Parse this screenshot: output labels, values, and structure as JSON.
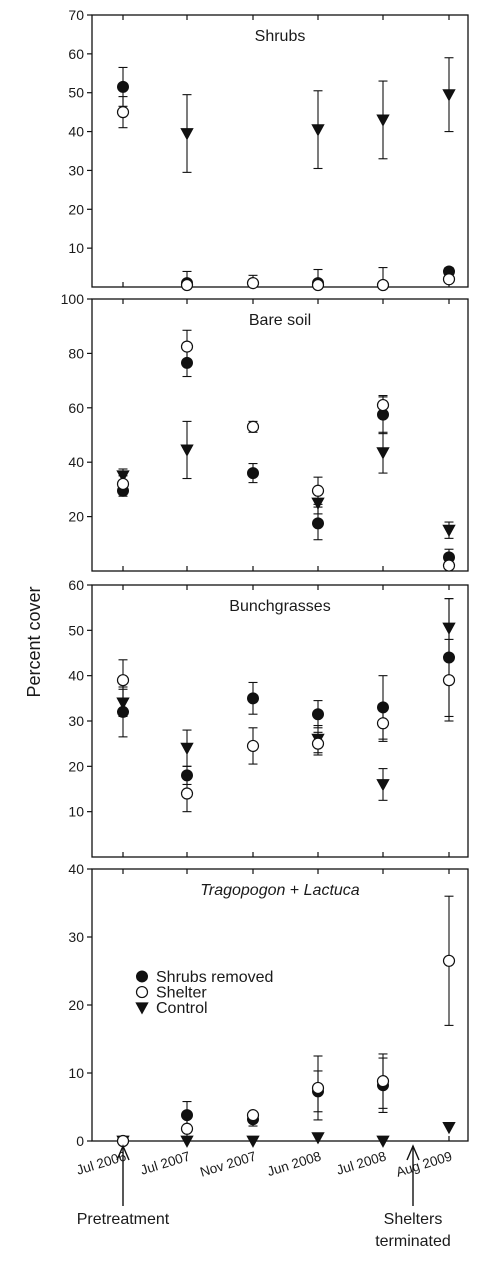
{
  "chart_data": {
    "type": "scatter",
    "ylabel": "Percent cover",
    "categories": [
      "Jul 2006",
      "Jul 2007",
      "Nov 2007",
      "Jun 2008",
      "Jul 2008",
      "Aug 2009"
    ],
    "legend": {
      "placement": "inside-bottom-panel-left",
      "entries": [
        {
          "name": "Shrubs removed",
          "marker": "filled-circle"
        },
        {
          "name": "Shelter",
          "marker": "open-circle"
        },
        {
          "name": "Control",
          "marker": "filled-triangle-down"
        }
      ]
    },
    "annotations": [
      {
        "lines": [
          "Pretreatment"
        ],
        "category": "Jul 2006"
      },
      {
        "lines": [
          "Shelters",
          "terminated"
        ],
        "category": "Aug 2009"
      }
    ],
    "panels": [
      {
        "title": "Shrubs",
        "title_style": "normal",
        "ylim": [
          0,
          70
        ],
        "yticks": [
          10,
          20,
          30,
          40,
          50,
          60,
          70
        ],
        "series": [
          {
            "name": "Shrubs removed",
            "values": [
              51.5,
              1,
              null,
              1,
              0.5,
              4
            ],
            "errors": [
              5,
              3,
              null,
              3.5,
              null,
              1
            ]
          },
          {
            "name": "Shelter",
            "values": [
              45,
              0.5,
              1,
              0.5,
              0.5,
              2
            ],
            "errors": [
              4,
              null,
              2,
              null,
              4.5,
              null
            ]
          },
          {
            "name": "Control",
            "values": [
              null,
              39.5,
              null,
              40.5,
              43,
              49.5
            ],
            "errors": [
              null,
              10,
              null,
              10,
              10,
              9.5
            ]
          }
        ]
      },
      {
        "title": "Bare soil",
        "title_style": "normal",
        "ylim": [
          0,
          100
        ],
        "yticks": [
          20,
          40,
          60,
          80,
          100
        ],
        "series": [
          {
            "name": "Shrubs removed",
            "values": [
              29.5,
              76.5,
              36,
              17.5,
              57.5,
              5
            ],
            "errors": [
              2,
              5,
              3.5,
              6,
              7,
              3
            ]
          },
          {
            "name": "Shelter",
            "values": [
              32,
              82.5,
              53,
              29.5,
              61,
              2
            ],
            "errors": [
              3,
              6,
              2,
              5,
              3,
              null
            ]
          },
          {
            "name": "Control",
            "values": [
              35,
              44.5,
              null,
              25,
              43.5,
              15
            ],
            "errors": [
              2.5,
              10.5,
              null,
              4,
              7.5,
              3
            ]
          }
        ]
      },
      {
        "title": "Bunchgrasses",
        "title_style": "normal",
        "ylim": [
          0,
          60
        ],
        "yticks": [
          10,
          20,
          30,
          40,
          50,
          60
        ],
        "series": [
          {
            "name": "Shrubs removed",
            "values": [
              32,
              18,
              35,
              31.5,
              33,
              44
            ],
            "errors": [
              5.5,
              2,
              3.5,
              3,
              7,
              13
            ]
          },
          {
            "name": "Shelter",
            "values": [
              39,
              14,
              24.5,
              25,
              29.5,
              39
            ],
            "errors": [
              4.5,
              4,
              4,
              2.5,
              4,
              9
            ]
          },
          {
            "name": "Control",
            "values": [
              34,
              24,
              null,
              26,
              16,
              50.5
            ],
            "errors": [
              3,
              4,
              null,
              3,
              3.5,
              6.5
            ]
          }
        ]
      },
      {
        "title_parts": [
          {
            "text": "Tragopogon",
            "style": "italic"
          },
          {
            "text": " + ",
            "style": "normal"
          },
          {
            "text": "Lactuca",
            "style": "italic"
          }
        ],
        "ylim": [
          0,
          40
        ],
        "yticks": [
          0,
          10,
          20,
          30,
          40
        ],
        "series": [
          {
            "name": "Shrubs removed",
            "values": [
              0,
              3.8,
              3.2,
              7.3,
              8.2,
              null
            ],
            "errors": [
              null,
              2,
              1,
              3,
              4,
              null
            ]
          },
          {
            "name": "Shelter",
            "values": [
              0,
              1.8,
              3.8,
              7.8,
              8.8,
              26.5
            ],
            "errors": [
              null,
              1.8,
              null,
              4.7,
              4,
              9.5
            ]
          },
          {
            "name": "Control",
            "values": [
              0,
              0,
              0,
              0.5,
              0,
              2
            ],
            "errors": [
              null,
              null,
              null,
              null,
              null,
              null
            ]
          }
        ]
      }
    ]
  }
}
